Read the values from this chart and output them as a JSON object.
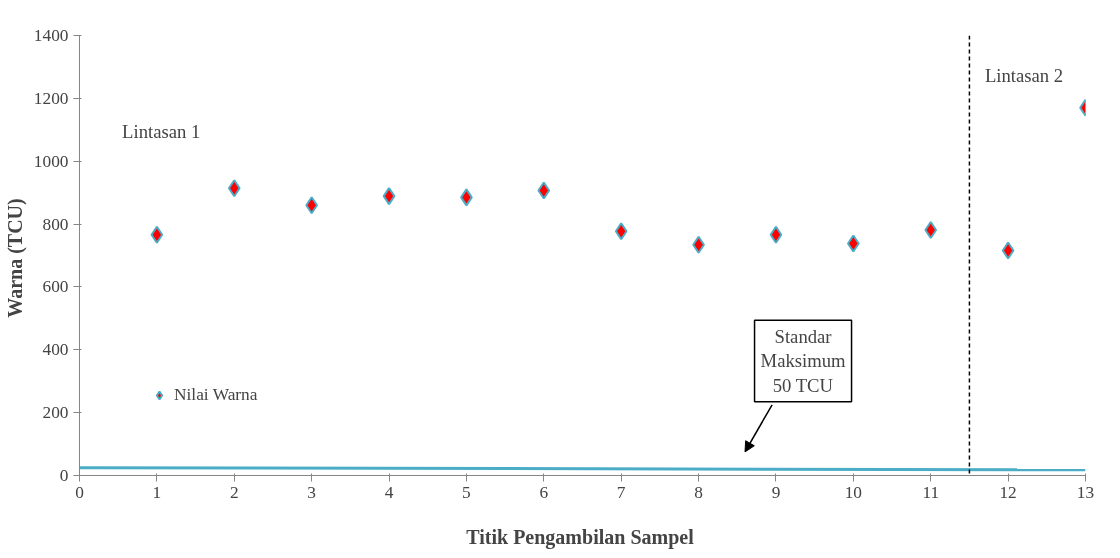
{
  "chart_data": {
    "type": "scatter",
    "xlabel": "Titik  Pengambilan Sampel",
    "ylabel": "Warna  (TCU)",
    "x": [
      1,
      2,
      3,
      4,
      5,
      6,
      7,
      8,
      9,
      10,
      11,
      12,
      13
    ],
    "series": [
      {
        "name": "Nilai Warna",
        "color": "#ff0000",
        "marker": "diamond",
        "values": [
          766,
          914,
          860,
          889,
          885,
          907,
          777,
          734,
          766,
          738,
          781,
          716,
          1170
        ]
      },
      {
        "type": "line",
        "color": "#4bacc6",
        "x": [
          0,
          13
        ],
        "values": [
          25,
          18
        ]
      }
    ],
    "xlim": [
      0,
      13
    ],
    "xticks": [
      0,
      1,
      2,
      3,
      4,
      5,
      6,
      7,
      8,
      9,
      10,
      11,
      12,
      13
    ],
    "ylim": [
      0,
      1400
    ],
    "yticks": [
      0,
      200,
      400,
      600,
      800,
      1000,
      1200,
      1400
    ],
    "grid": false,
    "legend": "bottom left",
    "ref_lines": [
      {
        "axis": "x",
        "value": 11.5,
        "label": null,
        "color": "#000000",
        "line_style": "dashed"
      }
    ],
    "annotations": [
      "Lintasan 1",
      "Lintasan 2",
      "Standar\nMaksimum\n50 TCU"
    ]
  }
}
